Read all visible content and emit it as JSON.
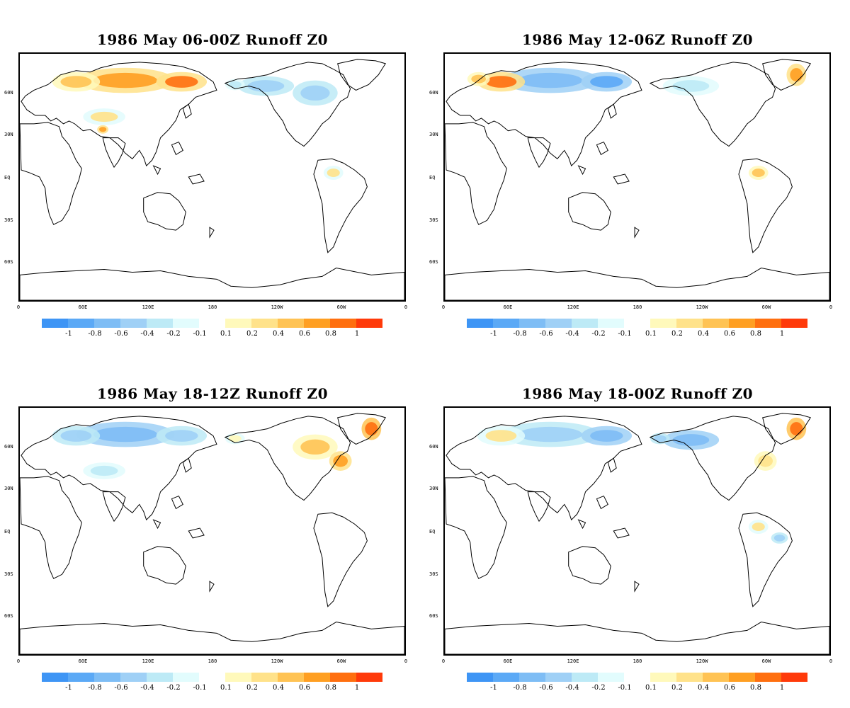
{
  "panels": [
    {
      "title": "1986 May 06-00Z Runoff Z0",
      "patches": [
        {
          "region": "siberia",
          "value": 0.7
        },
        {
          "region": "west_russia",
          "value": 0.4
        },
        {
          "region": "east_siberia",
          "value": 0.8
        },
        {
          "region": "central_asia",
          "value": 0.2
        },
        {
          "region": "canada_west",
          "value": -0.4
        },
        {
          "region": "canada_east",
          "value": -0.3
        },
        {
          "region": "alaska",
          "value": -0.2
        },
        {
          "region": "tibet",
          "value": 0.7
        },
        {
          "region": "amazon",
          "value": 0.2
        }
      ]
    },
    {
      "title": "1986 May 12-06Z Runoff Z0",
      "patches": [
        {
          "region": "siberia",
          "value": -0.6
        },
        {
          "region": "east_siberia",
          "value": -0.8
        },
        {
          "region": "west_russia",
          "value": 0.8
        },
        {
          "region": "scandinavia",
          "value": 0.4
        },
        {
          "region": "canada_west",
          "value": -0.2
        },
        {
          "region": "greenland_east",
          "value": 0.6
        },
        {
          "region": "amazon",
          "value": 0.4
        }
      ]
    },
    {
      "title": "1986 May 18-12Z Runoff Z0",
      "patches": [
        {
          "region": "siberia",
          "value": -0.6
        },
        {
          "region": "west_russia",
          "value": -0.3
        },
        {
          "region": "east_siberia",
          "value": -0.4
        },
        {
          "region": "central_asia",
          "value": -0.2
        },
        {
          "region": "canada_east",
          "value": 0.4
        },
        {
          "region": "quebec",
          "value": 0.6
        },
        {
          "region": "greenland_east",
          "value": 0.9
        },
        {
          "region": "alaska",
          "value": 0.1
        }
      ]
    },
    {
      "title": "1986 May 18-00Z Runoff Z0",
      "patches": [
        {
          "region": "siberia",
          "value": -0.3
        },
        {
          "region": "east_siberia",
          "value": -0.6
        },
        {
          "region": "canada_west",
          "value": -0.6
        },
        {
          "region": "alaska",
          "value": -0.4
        },
        {
          "region": "west_russia",
          "value": 0.2
        },
        {
          "region": "quebec",
          "value": 0.3
        },
        {
          "region": "greenland_east",
          "value": 0.9
        },
        {
          "region": "amazon",
          "value": 0.2
        },
        {
          "region": "brazil_east",
          "value": -0.3
        }
      ]
    }
  ],
  "lat_labels": [
    "60N",
    "30N",
    "EQ",
    "30S",
    "60S"
  ],
  "lon_labels": [
    "0",
    "60E",
    "120E",
    "180",
    "120W",
    "60W",
    "0"
  ],
  "colorbar": {
    "labels": [
      "-1",
      "-0.8",
      "-0.6",
      "-0.4",
      "-0.2",
      "-0.1",
      "0.1",
      "0.2",
      "0.4",
      "0.6",
      "0.8",
      "1"
    ],
    "levels": [
      -1,
      -0.8,
      -0.6,
      -0.4,
      -0.2,
      -0.1,
      0.1,
      0.2,
      0.4,
      0.6,
      0.8,
      1
    ],
    "colors": [
      "#3e95f5",
      "#5ba9f6",
      "#7ebdf5",
      "#9fd0f6",
      "#bdeaf6",
      "#e2fcfd",
      "#fff9bb",
      "#ffe28a",
      "#ffc354",
      "#ff9f22",
      "#ff6f0f",
      "#ff3a0a"
    ]
  }
}
